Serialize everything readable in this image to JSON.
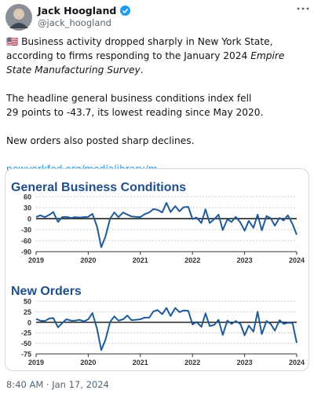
{
  "tweet": {
    "name": "Jack Hoogland",
    "handle": "@jack_hoogland",
    "paragraph_1": {
      "flag": "🇺🇸",
      "text": "Business activity dropped sharply in New York State, according to firms responding to the January 2024 ",
      "italic": "Empire State Manufacturing Survey",
      "end": "."
    },
    "paragraph_2": [
      "The headline general business conditions index fell",
      "29 points to -43.7,  its lowest reading since May 2020."
    ],
    "paragraph_3": "New orders also posted sharp declines.",
    "link": "newyorkfed.org/medialibrary/m…",
    "timestamp": "8:40 AM · Jan 17, 2024"
  },
  "chart_data": [
    {
      "type": "line",
      "title": "General Business Conditions",
      "grid": true,
      "x": [
        2019,
        2019.08,
        2019.17,
        2019.25,
        2019.33,
        2019.42,
        2019.5,
        2019.58,
        2019.67,
        2019.75,
        2019.83,
        2019.92,
        2020,
        2020.08,
        2020.17,
        2020.25,
        2020.33,
        2020.42,
        2020.5,
        2020.58,
        2020.67,
        2020.75,
        2020.83,
        2020.92,
        2021,
        2021.08,
        2021.17,
        2021.25,
        2021.33,
        2021.42,
        2021.5,
        2021.58,
        2021.67,
        2021.75,
        2021.83,
        2021.92,
        2022,
        2022.08,
        2022.17,
        2022.25,
        2022.33,
        2022.42,
        2022.5,
        2022.58,
        2022.67,
        2022.75,
        2022.83,
        2022.92,
        2023,
        2023.08,
        2023.17,
        2023.25,
        2023.33,
        2023.42,
        2023.5,
        2023.58,
        2023.67,
        2023.75,
        2023.83,
        2023.92,
        2024
      ],
      "series": [
        {
          "color": "#1f5b99",
          "values": [
            4,
            9,
            4,
            10,
            18,
            -9,
            4,
            5,
            2,
            4,
            3,
            4,
            5,
            13,
            -22,
            -78,
            -49,
            0,
            17,
            4,
            17,
            11,
            6,
            5,
            4,
            12,
            17,
            26,
            24,
            17,
            43,
            18,
            34,
            20,
            31,
            32,
            -1,
            3,
            -12,
            25,
            -12,
            -1,
            11,
            -31,
            -2,
            -9,
            5,
            -11,
            -33,
            -6,
            -25,
            11,
            -32,
            7,
            1,
            -19,
            2,
            -5,
            9,
            -15,
            -44
          ]
        }
      ],
      "xlim": [
        2019,
        2024
      ],
      "xticks": [
        2019,
        2020,
        2021,
        2022,
        2023,
        2024
      ],
      "ylim": [
        -90,
        60
      ],
      "yticks": [
        60,
        30,
        0,
        -30,
        -60,
        -90
      ]
    },
    {
      "type": "line",
      "title": "New Orders",
      "grid": true,
      "x": [
        2019,
        2019.08,
        2019.17,
        2019.25,
        2019.33,
        2019.42,
        2019.5,
        2019.58,
        2019.67,
        2019.75,
        2019.83,
        2019.92,
        2020,
        2020.08,
        2020.17,
        2020.25,
        2020.33,
        2020.42,
        2020.5,
        2020.58,
        2020.67,
        2020.75,
        2020.83,
        2020.92,
        2021,
        2021.08,
        2021.17,
        2021.25,
        2021.33,
        2021.42,
        2021.5,
        2021.58,
        2021.67,
        2021.75,
        2021.83,
        2021.92,
        2022,
        2022.08,
        2022.17,
        2022.25,
        2022.33,
        2022.42,
        2022.5,
        2022.58,
        2022.67,
        2022.75,
        2022.83,
        2022.92,
        2023,
        2023.08,
        2023.17,
        2023.25,
        2023.33,
        2023.42,
        2023.5,
        2023.58,
        2023.67,
        2023.75,
        2023.83,
        2023.92,
        2024
      ],
      "series": [
        {
          "color": "#1f5b99",
          "values": [
            8,
            4,
            3,
            9,
            10,
            -12,
            -2,
            7,
            4,
            4,
            6,
            2,
            7,
            22,
            -16,
            -66,
            -42,
            1,
            14,
            4,
            7,
            16,
            5,
            6,
            7,
            11,
            11,
            26,
            29,
            19,
            34,
            15,
            34,
            24,
            28,
            27,
            -5,
            1,
            -11,
            21,
            -9,
            -6,
            6,
            -30,
            4,
            -4,
            3,
            -4,
            -31,
            -8,
            -22,
            25,
            -28,
            3,
            -4,
            -20,
            5,
            -4,
            -1,
            -2,
            -49
          ]
        }
      ],
      "xlim": [
        2019,
        2024
      ],
      "xticks": [
        2019,
        2020,
        2021,
        2022,
        2023,
        2024
      ],
      "ylim": [
        -75,
        50
      ],
      "yticks": [
        50,
        25,
        0,
        -25,
        -50,
        -75
      ]
    }
  ]
}
